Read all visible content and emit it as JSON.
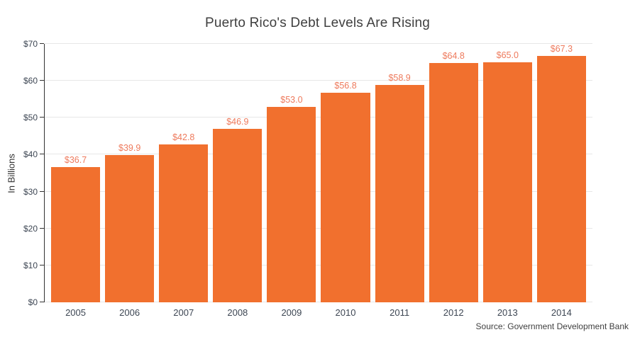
{
  "chart": {
    "title": "Puerto Rico's Debt Levels Are Rising",
    "y_axis_title": "In Billions",
    "source": "Source: Government Development Bank"
  },
  "chart_data": {
    "type": "bar",
    "title": "Puerto Rico's Debt Levels Are Rising",
    "xlabel": "",
    "ylabel": "In Billions",
    "categories": [
      "2005",
      "2006",
      "2007",
      "2008",
      "2009",
      "2010",
      "2011",
      "2012",
      "2013",
      "2014"
    ],
    "values": [
      36.7,
      39.9,
      42.8,
      46.9,
      53.0,
      56.8,
      58.9,
      64.8,
      65.0,
      67.3
    ],
    "value_labels": [
      "$36.7",
      "$39.9",
      "$42.8",
      "$46.9",
      "$53.0",
      "$56.8",
      "$58.9",
      "$64.8",
      "$65.0",
      "$67.3"
    ],
    "ylim": [
      0,
      70
    ],
    "ytick_interval": 10,
    "ytick_labels": [
      "$0",
      "$10",
      "$20",
      "$30",
      "$40",
      "$50",
      "$60",
      "$70"
    ],
    "grid": true,
    "legend": false,
    "source": "Source: Government Development Bank",
    "colors": {
      "bar": "#f1702e",
      "value_label": "#ee7a5c",
      "gridline": "#e7e7e7",
      "axis_line": "#333333",
      "title_text": "#3f3f3f",
      "tick_text": "#3d4653"
    }
  }
}
